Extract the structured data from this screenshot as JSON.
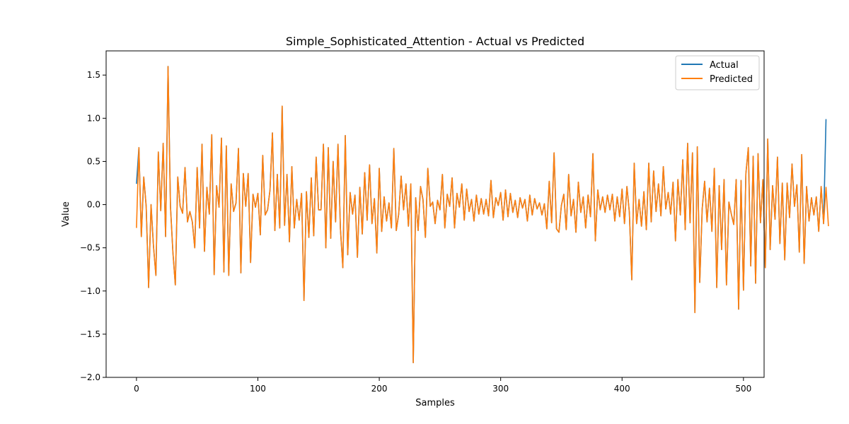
{
  "chart_data": {
    "type": "line",
    "title": "Simple_Sophisticated_Attention - Actual vs Predicted",
    "xlabel": "Samples",
    "ylabel": "Value",
    "xlim": [
      -25,
      517
    ],
    "ylim": [
      -2.0,
      1.78
    ],
    "x_ticks": [
      0,
      100,
      200,
      300,
      400,
      500
    ],
    "y_ticks": [
      -2.0,
      -1.5,
      -1.0,
      -0.5,
      0.0,
      0.5,
      1.0,
      1.5
    ],
    "x_tick_labels": [
      "0",
      "100",
      "200",
      "300",
      "400",
      "500"
    ],
    "y_tick_labels": [
      "−2.0",
      "−1.5",
      "−1.0",
      "−0.5",
      "0.0",
      "0.5",
      "1.0",
      "1.5"
    ],
    "grid": false,
    "legend_position": "upper-right",
    "series": [
      {
        "name": "Actual",
        "color": "#1f77b4",
        "x_start": 0,
        "values": [
          0.24,
          0.66,
          -0.37,
          0.32,
          -0.02,
          -0.96,
          0.0,
          -0.48,
          -0.82,
          0.61,
          -0.07,
          0.71,
          -0.37,
          1.6,
          -0.02,
          -0.55,
          -0.93,
          0.32,
          -0.02,
          -0.1,
          0.43,
          -0.2,
          -0.08,
          -0.2,
          -0.5,
          0.43,
          -0.27,
          0.7,
          -0.54,
          0.2,
          -0.11,
          0.81,
          -0.81,
          0.22,
          -0.03,
          0.77,
          -0.78,
          0.68,
          -0.82,
          0.24,
          -0.08,
          0.02,
          0.65,
          -0.79,
          0.36,
          -0.02,
          0.36,
          -0.67,
          0.12,
          -0.03,
          0.13,
          -0.35,
          0.57,
          -0.12,
          -0.06,
          0.17,
          0.83,
          -0.3,
          0.35,
          -0.27,
          1.14,
          -0.24,
          0.35,
          -0.43,
          0.44,
          -0.27,
          0.06,
          -0.18,
          0.13,
          -1.11,
          0.15,
          -0.38,
          0.31,
          -0.36,
          0.55,
          -0.06,
          -0.06,
          0.7,
          -0.5,
          0.66,
          -0.39,
          0.5,
          -0.2,
          0.7,
          -0.28,
          -0.73,
          0.8,
          -0.58,
          0.14,
          -0.11,
          0.11,
          -0.61,
          0.2,
          -0.34,
          0.37,
          -0.18,
          0.46,
          -0.22,
          0.07,
          -0.56,
          0.42,
          -0.31,
          0.09,
          -0.19,
          0.02,
          -0.27,
          0.65,
          -0.3,
          -0.11,
          0.33,
          -0.06,
          0.24,
          -0.25,
          0.24,
          -1.83,
          0.08,
          -0.3,
          0.21,
          0.06,
          -0.38,
          0.42,
          -0.02,
          0.03,
          -0.22,
          0.05,
          -0.06,
          0.35,
          -0.27,
          0.12,
          -0.02,
          0.31,
          -0.27,
          0.13,
          -0.03,
          0.24,
          -0.18,
          0.18,
          -0.08,
          0.06,
          -0.19,
          0.11,
          -0.11,
          0.07,
          -0.11,
          0.06,
          -0.13,
          0.28,
          -0.15,
          0.08,
          -0.01,
          0.14,
          -0.18,
          0.17,
          -0.14,
          0.13,
          -0.09,
          0.05,
          -0.15,
          0.08,
          -0.04,
          0.06,
          -0.19,
          0.11,
          -0.12,
          0.07,
          -0.05,
          0.02,
          -0.12,
          0.01,
          -0.28,
          0.27,
          -0.21,
          0.6,
          -0.28,
          -0.32,
          -0.01,
          0.12,
          -0.29,
          0.35,
          -0.13,
          0.06,
          -0.32,
          0.26,
          -0.09,
          0.09,
          -0.27,
          0.11,
          -0.14,
          0.59,
          -0.42,
          0.17,
          -0.06,
          0.09,
          -0.09,
          0.11,
          -0.06,
          0.12,
          -0.19,
          0.09,
          -0.14,
          0.18,
          -0.22,
          0.21,
          -0.09,
          -0.87,
          0.48,
          -0.22,
          0.06,
          -0.25,
          0.15,
          -0.29,
          0.48,
          -0.2,
          0.39,
          -0.08,
          0.24,
          -0.13,
          0.44,
          -0.05,
          0.14,
          -0.11,
          0.26,
          -0.42,
          0.29,
          -0.12,
          0.52,
          -0.29,
          0.71,
          -0.21,
          0.6,
          -1.25,
          0.67,
          -0.9,
          -0.05,
          0.27,
          -0.2,
          0.19,
          -0.31,
          0.42,
          -0.96,
          0.22,
          -0.52,
          0.29,
          -0.93,
          0.03,
          -0.11,
          -0.23,
          0.29,
          -1.21,
          0.28,
          -0.99,
          0.36,
          0.66,
          -0.71,
          0.56,
          -0.91,
          0.59,
          -0.21,
          0.29,
          -0.73,
          0.76,
          -0.52,
          0.22,
          -0.17,
          0.55,
          -0.45,
          0.25,
          -0.64,
          0.25,
          -0.15,
          0.47,
          -0.02,
          0.23,
          -0.55,
          0.58,
          -0.68,
          0.21,
          -0.19,
          0.08,
          -0.12,
          0.09,
          -0.31,
          0.21,
          -0.22,
          0.99
        ],
        "sample_step": 2
      },
      {
        "name": "Predicted",
        "color": "#ff7f0e",
        "x_start": 0,
        "values": [
          -0.27,
          0.66,
          -0.37,
          0.32,
          -0.02,
          -0.96,
          0.0,
          -0.48,
          -0.82,
          0.61,
          -0.07,
          0.71,
          -0.37,
          1.6,
          -0.02,
          -0.55,
          -0.93,
          0.32,
          -0.02,
          -0.1,
          0.43,
          -0.2,
          -0.08,
          -0.2,
          -0.5,
          0.43,
          -0.27,
          0.7,
          -0.54,
          0.2,
          -0.11,
          0.81,
          -0.81,
          0.22,
          -0.03,
          0.77,
          -0.78,
          0.68,
          -0.82,
          0.24,
          -0.08,
          0.02,
          0.65,
          -0.79,
          0.36,
          -0.02,
          0.36,
          -0.67,
          0.12,
          -0.03,
          0.13,
          -0.35,
          0.57,
          -0.12,
          -0.06,
          0.17,
          0.83,
          -0.3,
          0.35,
          -0.27,
          1.14,
          -0.24,
          0.35,
          -0.43,
          0.44,
          -0.27,
          0.06,
          -0.18,
          0.13,
          -1.11,
          0.15,
          -0.38,
          0.31,
          -0.36,
          0.55,
          -0.06,
          -0.06,
          0.7,
          -0.5,
          0.66,
          -0.39,
          0.5,
          -0.2,
          0.7,
          -0.28,
          -0.73,
          0.8,
          -0.58,
          0.14,
          -0.11,
          0.11,
          -0.61,
          0.2,
          -0.34,
          0.37,
          -0.18,
          0.46,
          -0.22,
          0.07,
          -0.56,
          0.42,
          -0.31,
          0.09,
          -0.19,
          0.02,
          -0.27,
          0.65,
          -0.3,
          -0.11,
          0.33,
          -0.06,
          0.24,
          -0.25,
          0.24,
          -1.83,
          0.08,
          -0.3,
          0.21,
          0.06,
          -0.38,
          0.42,
          -0.02,
          0.03,
          -0.22,
          0.05,
          -0.06,
          0.35,
          -0.27,
          0.12,
          -0.02,
          0.31,
          -0.27,
          0.13,
          -0.03,
          0.24,
          -0.18,
          0.18,
          -0.08,
          0.06,
          -0.19,
          0.11,
          -0.11,
          0.07,
          -0.11,
          0.06,
          -0.13,
          0.28,
          -0.15,
          0.08,
          -0.01,
          0.14,
          -0.18,
          0.17,
          -0.14,
          0.13,
          -0.09,
          0.05,
          -0.15,
          0.08,
          -0.04,
          0.06,
          -0.19,
          0.11,
          -0.12,
          0.07,
          -0.05,
          0.02,
          -0.12,
          0.01,
          -0.28,
          0.27,
          -0.21,
          0.6,
          -0.28,
          -0.32,
          -0.01,
          0.12,
          -0.29,
          0.35,
          -0.13,
          0.06,
          -0.32,
          0.26,
          -0.09,
          0.09,
          -0.27,
          0.11,
          -0.14,
          0.59,
          -0.42,
          0.17,
          -0.06,
          0.09,
          -0.09,
          0.11,
          -0.06,
          0.12,
          -0.19,
          0.09,
          -0.14,
          0.18,
          -0.22,
          0.21,
          -0.09,
          -0.87,
          0.48,
          -0.22,
          0.06,
          -0.25,
          0.15,
          -0.29,
          0.48,
          -0.2,
          0.39,
          -0.08,
          0.24,
          -0.13,
          0.44,
          -0.05,
          0.14,
          -0.11,
          0.26,
          -0.42,
          0.29,
          -0.12,
          0.52,
          -0.29,
          0.71,
          -0.21,
          0.6,
          -1.25,
          0.67,
          -0.9,
          -0.05,
          0.27,
          -0.2,
          0.19,
          -0.31,
          0.42,
          -0.96,
          0.22,
          -0.52,
          0.29,
          -0.93,
          0.03,
          -0.11,
          -0.23,
          0.29,
          -1.21,
          0.28,
          -0.99,
          0.36,
          0.66,
          -0.71,
          0.56,
          -0.91,
          0.59,
          -0.21,
          0.29,
          -0.73,
          0.76,
          -0.52,
          0.22,
          -0.17,
          0.55,
          -0.45,
          0.25,
          -0.64,
          0.25,
          -0.15,
          0.47,
          -0.02,
          0.23,
          -0.55,
          0.58,
          -0.68,
          0.21,
          -0.19,
          0.08,
          -0.12,
          0.09,
          -0.31,
          0.21,
          -0.22,
          0.2,
          -0.25
        ],
        "sample_step": 2
      }
    ]
  }
}
